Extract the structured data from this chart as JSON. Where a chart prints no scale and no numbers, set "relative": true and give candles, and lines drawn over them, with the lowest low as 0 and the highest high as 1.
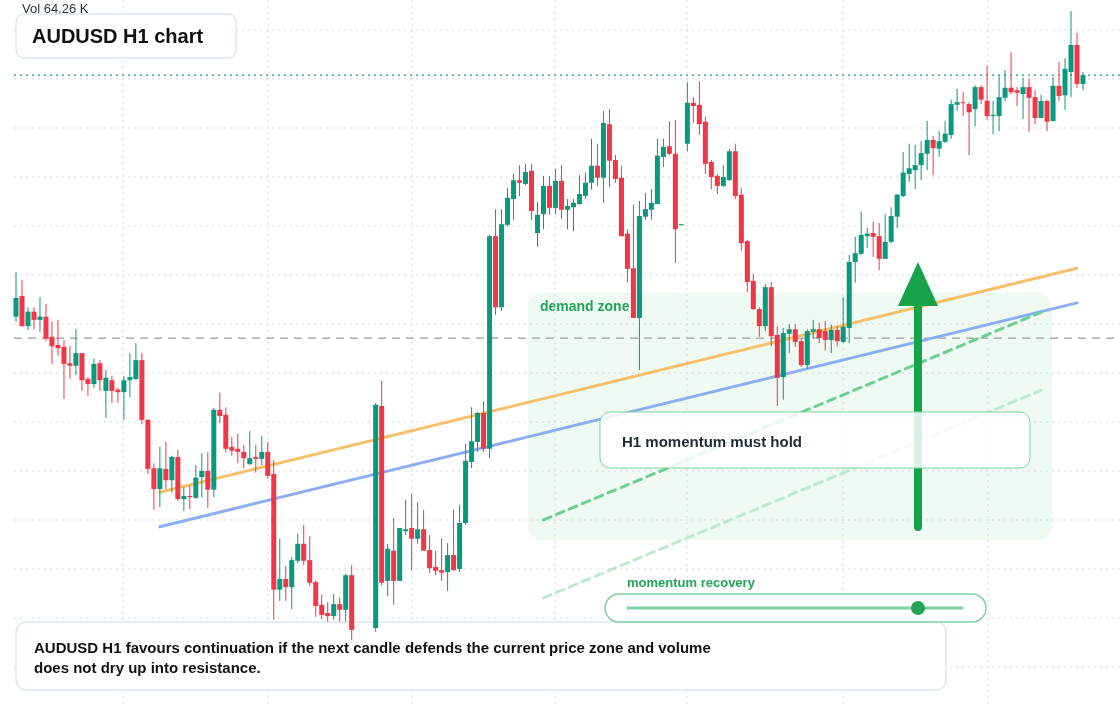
{
  "chart_data": {
    "type": "candlestick",
    "title": "AUDUSD H1 chart",
    "relative": true,
    "grid": true,
    "categories": [
      null,
      null,
      null,
      null,
      null,
      null,
      null,
      null,
      null,
      null,
      null,
      null,
      null,
      null,
      null,
      null,
      null,
      null,
      null,
      null,
      null,
      null,
      null,
      null,
      null,
      null,
      null,
      null,
      null,
      null,
      null,
      null,
      null,
      null,
      null,
      null,
      null,
      null,
      null,
      null,
      null,
      null,
      null,
      null,
      null,
      null,
      null,
      null,
      null,
      null,
      null,
      null,
      null,
      null,
      null,
      null,
      null,
      null,
      null,
      null,
      null,
      null,
      null,
      null,
      null,
      null,
      null,
      null,
      null,
      null,
      null,
      null,
      null,
      null,
      null,
      null,
      null,
      null,
      null,
      null,
      null,
      null,
      null,
      null,
      null,
      null,
      null,
      null,
      null,
      null,
      null,
      null,
      null,
      null,
      null,
      null,
      null,
      null,
      null,
      null,
      null,
      null,
      null,
      null,
      null,
      null,
      null,
      null,
      null,
      null,
      null,
      null,
      null,
      null,
      null,
      null,
      null,
      null,
      null,
      null,
      null,
      null,
      null,
      null,
      null,
      null,
      null,
      null,
      null,
      null,
      null,
      null,
      null,
      null,
      null,
      null,
      null,
      null,
      null,
      null,
      null,
      null,
      null,
      null,
      null,
      null,
      null,
      null,
      null,
      null,
      null,
      null,
      null,
      null,
      null,
      null,
      null,
      null,
      null,
      null,
      null,
      null,
      null,
      null,
      null,
      null,
      null,
      null,
      null,
      null,
      null,
      null,
      null,
      null,
      null,
      null,
      null,
      null,
      null
    ],
    "ohlc": [
      [
        0.514,
        0.585,
        0.506,
        0.544
      ],
      [
        0.547,
        0.572,
        0.498,
        0.499
      ],
      [
        0.499,
        0.529,
        0.493,
        0.522
      ],
      [
        0.522,
        0.529,
        0.494,
        0.509
      ],
      [
        0.509,
        0.545,
        0.49,
        0.514
      ],
      [
        0.514,
        0.534,
        0.475,
        0.479
      ],
      [
        0.482,
        0.506,
        0.439,
        0.467
      ],
      [
        0.469,
        0.509,
        0.452,
        0.464
      ],
      [
        0.466,
        0.477,
        0.383,
        0.439
      ],
      [
        0.44,
        0.467,
        0.415,
        0.436
      ],
      [
        0.436,
        0.494,
        0.421,
        0.456
      ],
      [
        0.456,
        0.456,
        0.396,
        0.413
      ],
      [
        0.415,
        0.418,
        0.388,
        0.407
      ],
      [
        0.407,
        0.447,
        0.401,
        0.439
      ],
      [
        0.44,
        0.445,
        0.396,
        0.413
      ],
      [
        0.396,
        0.429,
        0.353,
        0.417
      ],
      [
        0.413,
        0.42,
        0.377,
        0.396
      ],
      [
        0.398,
        0.401,
        0.377,
        0.394
      ],
      [
        0.394,
        0.42,
        0.35,
        0.413
      ],
      [
        0.413,
        0.456,
        0.386,
        0.418
      ],
      [
        0.415,
        0.472,
        0.413,
        0.445
      ],
      [
        0.445,
        0.456,
        0.343,
        0.35
      ],
      [
        0.35,
        0.351,
        0.264,
        0.272
      ],
      [
        0.273,
        0.281,
        0.207,
        0.24
      ],
      [
        0.24,
        0.307,
        0.211,
        0.273
      ],
      [
        0.272,
        0.315,
        0.24,
        0.254
      ],
      [
        0.254,
        0.293,
        0.234,
        0.291
      ],
      [
        0.291,
        0.302,
        0.221,
        0.224
      ],
      [
        0.224,
        0.243,
        0.205,
        0.229
      ],
      [
        0.229,
        0.246,
        0.208,
        0.227
      ],
      [
        0.226,
        0.278,
        0.224,
        0.258
      ],
      [
        0.259,
        0.297,
        0.227,
        0.269
      ],
      [
        0.269,
        0.299,
        0.21,
        0.239
      ],
      [
        0.239,
        0.369,
        0.227,
        0.366
      ],
      [
        0.366,
        0.393,
        0.345,
        0.356
      ],
      [
        0.358,
        0.37,
        0.299,
        0.304
      ],
      [
        0.307,
        0.323,
        0.293,
        0.301
      ],
      [
        0.304,
        0.328,
        0.281,
        0.299
      ],
      [
        0.299,
        0.31,
        0.273,
        0.289
      ],
      [
        0.28,
        0.332,
        0.278,
        0.289
      ],
      [
        0.291,
        0.31,
        0.266,
        0.288
      ],
      [
        0.288,
        0.324,
        0.278,
        0.299
      ],
      [
        0.299,
        0.315,
        0.256,
        0.261
      ],
      [
        0.264,
        0.286,
        0.032,
        0.08
      ],
      [
        0.08,
        0.161,
        0.062,
        0.097
      ],
      [
        0.097,
        0.118,
        0.062,
        0.084
      ],
      [
        0.084,
        0.132,
        0.049,
        0.127
      ],
      [
        0.126,
        0.169,
        0.122,
        0.153
      ],
      [
        0.153,
        0.183,
        0.119,
        0.126
      ],
      [
        0.127,
        0.165,
        0.086,
        0.091
      ],
      [
        0.092,
        0.095,
        0.037,
        0.054
      ],
      [
        0.056,
        0.072,
        0.033,
        0.04
      ],
      [
        0.043,
        0.06,
        0.029,
        0.038
      ],
      [
        0.038,
        0.073,
        0.032,
        0.057
      ],
      [
        0.057,
        0.067,
        0.029,
        0.048
      ],
      [
        0.048,
        0.105,
        0.029,
        0.103
      ],
      [
        0.103,
        0.119,
        0,
        0.016
      ],
      null,
      null,
      null,
      [
        0.019,
        0.377,
        0.013,
        0.374
      ],
      [
        0.372,
        0.412,
        0.087,
        0.091
      ],
      [
        0.094,
        0.153,
        0.07,
        0.145
      ],
      [
        0.142,
        0.194,
        0.056,
        0.094
      ],
      [
        0.094,
        0.178,
        0.094,
        0.178
      ],
      [
        0.173,
        0.223,
        0.167,
        0.176
      ],
      [
        0.178,
        0.232,
        0.111,
        0.161
      ],
      [
        0.161,
        0.219,
        0.153,
        0.176
      ],
      [
        0.176,
        0.207,
        0.142,
        0.142
      ],
      [
        0.143,
        0.167,
        0.107,
        0.114
      ],
      [
        0.116,
        0.142,
        0.103,
        0.11
      ],
      [
        0.111,
        0.162,
        0.094,
        0.107
      ],
      [
        0.108,
        0.154,
        0.078,
        0.135
      ],
      [
        0.135,
        0.207,
        0.11,
        0.111
      ],
      [
        0.113,
        0.215,
        0.108,
        0.186
      ],
      [
        0.186,
        0.312,
        0.183,
        0.285
      ],
      [
        0.283,
        0.37,
        0.273,
        0.316
      ],
      [
        0.315,
        0.363,
        0.299,
        0.361
      ],
      [
        0.361,
        0.38,
        0.299,
        0.304
      ],
      [
        0.304,
        0.644,
        0.289,
        0.642
      ],
      [
        0.642,
        0.685,
        0.517,
        0.529
      ],
      [
        0.529,
        0.685,
        0.523,
        0.661
      ],
      [
        0.66,
        0.719,
        0.658,
        0.703
      ],
      [
        0.701,
        0.741,
        0.668,
        0.731
      ],
      [
        0.731,
        0.755,
        0.706,
        0.727
      ],
      [
        0.725,
        0.757,
        0.723,
        0.744
      ],
      [
        0.746,
        0.757,
        0.668,
        0.682
      ],
      [
        0.647,
        0.696,
        0.625,
        0.676
      ],
      [
        0.677,
        0.738,
        0.653,
        0.722
      ],
      [
        0.722,
        0.738,
        0.676,
        0.687
      ],
      [
        0.687,
        0.749,
        0.677,
        0.73
      ],
      [
        0.73,
        0.755,
        0.669,
        0.684
      ],
      [
        0.684,
        0.701,
        0.653,
        0.69
      ],
      [
        0.688,
        0.701,
        0.65,
        0.695
      ],
      [
        0.693,
        0.739,
        0.692,
        0.709
      ],
      [
        0.706,
        0.743,
        0.701,
        0.727
      ],
      [
        0.727,
        0.797,
        0.716,
        0.754
      ],
      [
        0.754,
        0.789,
        0.722,
        0.735
      ],
      [
        0.735,
        0.841,
        0.695,
        0.822
      ],
      [
        0.82,
        0.844,
        0.72,
        0.762
      ],
      [
        0.763,
        0.771,
        0.727,
        0.733
      ],
      [
        0.735,
        0.754,
        0.642,
        0.642
      ],
      [
        0.646,
        0.653,
        0.569,
        0.59
      ],
      [
        0.591,
        0.692,
        0.512,
        0.512
      ],
      [
        0.512,
        0.698,
        0.429,
        0.674
      ],
      [
        0.673,
        0.711,
        0.668,
        0.685
      ],
      [
        0.684,
        0.717,
        0.668,
        0.695
      ],
      [
        0.693,
        0.797,
        0.693,
        0.77
      ],
      [
        0.768,
        0.797,
        0.752,
        0.784
      ],
      [
        0.785,
        0.825,
        0.771,
        0.773
      ],
      [
        0.773,
        0.827,
        0.599,
        0.653
      ],
      [
        0.66,
        0.661,
        0.66,
        0.661
      ],
      [
        0.789,
        0.887,
        0.777,
        0.854
      ],
      [
        0.854,
        0.863,
        0.822,
        0.849
      ],
      [
        0.851,
        0.889,
        0.803,
        0.82
      ],
      [
        0.824,
        0.832,
        0.741,
        0.757
      ],
      [
        0.76,
        0.763,
        0.717,
        0.736
      ],
      [
        0.738,
        0.741,
        0.709,
        0.722
      ],
      [
        0.722,
        0.755,
        0.72,
        0.736
      ],
      [
        0.731,
        0.781,
        0.73,
        0.777
      ],
      [
        0.777,
        0.789,
        0.701,
        0.706
      ],
      [
        0.708,
        0.719,
        0.619,
        0.631
      ],
      [
        0.634,
        0.636,
        0.553,
        0.569
      ],
      [
        0.571,
        0.582,
        0.525,
        0.526
      ],
      [
        0.526,
        0.529,
        0.482,
        0.499
      ],
      [
        0.499,
        0.566,
        0.491,
        0.561
      ],
      [
        0.561,
        0.569,
        0.467,
        0.483
      ],
      [
        0.485,
        0.499,
        0.372,
        0.417
      ],
      [
        0.418,
        0.496,
        0.382,
        0.488
      ],
      [
        0.487,
        0.502,
        0.456,
        0.494
      ],
      [
        0.494,
        0.502,
        0.466,
        0.474
      ],
      [
        0.475,
        0.479,
        0.434,
        0.437
      ],
      [
        0.437,
        0.494,
        0.431,
        0.491
      ],
      [
        0.49,
        0.509,
        0.48,
        0.494
      ],
      [
        0.494,
        0.504,
        0.472,
        0.48
      ],
      [
        0.491,
        0.507,
        0.46,
        0.477
      ],
      [
        0.477,
        0.501,
        0.456,
        0.493
      ],
      [
        0.493,
        0.499,
        0.467,
        0.475
      ],
      [
        0.474,
        0.545,
        0.472,
        0.498
      ],
      [
        0.496,
        0.612,
        0.472,
        0.601
      ],
      [
        0.601,
        0.641,
        0.568,
        0.615
      ],
      [
        0.614,
        0.681,
        0.612,
        0.644
      ],
      [
        0.642,
        0.655,
        0.623,
        0.646
      ],
      [
        0.647,
        0.665,
        0.609,
        0.641
      ],
      [
        0.642,
        0.663,
        0.588,
        0.606
      ],
      [
        0.606,
        0.677,
        0.606,
        0.633
      ],
      [
        0.633,
        0.688,
        0.631,
        0.674
      ],
      [
        0.673,
        0.709,
        0.655,
        0.708
      ],
      [
        0.706,
        0.776,
        0.704,
        0.743
      ],
      [
        0.741,
        0.789,
        0.728,
        0.75
      ],
      [
        0.747,
        0.787,
        0.717,
        0.755
      ],
      [
        0.755,
        0.793,
        0.731,
        0.774
      ],
      [
        0.773,
        0.825,
        0.747,
        0.795
      ],
      [
        0.795,
        0.801,
        0.739,
        0.782
      ],
      [
        0.781,
        0.809,
        0.768,
        0.793
      ],
      [
        0.792,
        0.825,
        0.79,
        0.805
      ],
      [
        0.803,
        0.859,
        0.797,
        0.852
      ],
      [
        0.851,
        0.876,
        0.841,
        0.855
      ],
      [
        0.855,
        0.871,
        0.833,
        0.854
      ],
      [
        0.852,
        0.855,
        0.771,
        0.839
      ],
      [
        0.844,
        0.882,
        0.817,
        0.879
      ],
      [
        0.879,
        0.882,
        0.852,
        0.859
      ],
      [
        0.857,
        0.913,
        0.827,
        0.833
      ],
      [
        0.833,
        0.857,
        0.804,
        0.835
      ],
      [
        0.833,
        0.897,
        0.809,
        0.863
      ],
      [
        0.862,
        0.906,
        0.857,
        0.878
      ],
      [
        0.878,
        0.935,
        0.868,
        0.871
      ],
      [
        0.874,
        0.879,
        0.849,
        0.87
      ],
      [
        0.868,
        0.894,
        0.828,
        0.879
      ],
      [
        0.879,
        0.892,
        0.808,
        0.862
      ],
      [
        0.863,
        0.874,
        0.82,
        0.83
      ],
      [
        0.83,
        0.867,
        0.83,
        0.857
      ],
      [
        0.857,
        0.859,
        0.809,
        0.824
      ],
      [
        0.825,
        0.895,
        0.825,
        0.881
      ],
      [
        0.881,
        0.919,
        0.857,
        0.865
      ],
      [
        0.866,
        0.925,
        0.843,
        0.908
      ],
      [
        0.903,
        1,
        0.863,
        0.946
      ],
      [
        0.946,
        0.965,
        0.878,
        0.884
      ],
      [
        0.884,
        0.903,
        0.874,
        0.898
      ]
    ],
    "series": [
      {
        "type": "line",
        "color": "#f6c06a",
        "values": [
          null,
          null,
          null,
          null,
          null,
          null,
          null,
          null,
          null,
          null,
          null,
          null,
          null,
          null,
          null,
          null,
          null,
          null,
          null,
          null,
          null,
          null,
          null,
          null,
          0.235,
          null,
          null,
          null,
          null,
          null,
          null,
          null,
          null,
          null,
          null,
          null,
          null,
          null,
          null,
          null,
          null,
          null,
          null,
          null,
          null,
          null,
          null,
          null,
          null,
          null,
          null,
          null,
          null,
          null,
          null,
          null,
          null,
          null,
          null,
          null,
          null,
          null,
          null,
          null,
          null,
          null,
          null,
          null,
          null,
          null,
          null,
          null,
          null,
          null,
          null,
          null,
          null,
          null,
          null,
          null,
          null,
          null,
          null,
          null,
          null,
          null,
          null,
          null,
          null,
          null,
          null,
          null,
          null,
          null,
          null,
          null,
          null,
          null,
          null,
          null,
          null,
          null,
          null,
          null,
          null,
          null,
          null,
          null,
          null,
          null,
          null,
          null,
          null,
          null,
          null,
          null,
          null,
          null,
          null,
          null,
          null,
          null,
          null,
          null,
          null,
          null,
          null,
          null,
          null,
          null,
          null,
          null,
          null,
          null,
          null,
          null,
          null,
          null,
          null,
          null,
          null,
          null,
          null,
          null,
          null,
          null,
          null,
          null,
          null,
          null,
          null,
          null,
          null,
          null,
          null,
          null,
          null,
          null,
          null,
          null,
          null,
          null,
          null,
          null,
          null,
          null,
          null,
          null,
          null,
          null,
          null,
          null,
          null,
          null,
          null,
          null,
          null,
          0.591,
          null
        ]
      },
      {
        "type": "line",
        "color": "#8aaef0",
        "values": [
          null,
          null,
          null,
          null,
          null,
          null,
          null,
          null,
          null,
          null,
          null,
          null,
          null,
          null,
          null,
          null,
          null,
          null,
          null,
          null,
          null,
          null,
          null,
          null,
          0.18,
          null,
          null,
          null,
          null,
          null,
          null,
          null,
          null,
          null,
          null,
          null,
          null,
          null,
          null,
          null,
          null,
          null,
          null,
          null,
          null,
          null,
          null,
          null,
          null,
          null,
          null,
          null,
          null,
          null,
          null,
          null,
          null,
          null,
          null,
          null,
          null,
          null,
          null,
          null,
          null,
          null,
          null,
          null,
          null,
          null,
          null,
          null,
          null,
          null,
          null,
          null,
          null,
          null,
          null,
          null,
          null,
          null,
          null,
          null,
          null,
          null,
          null,
          null,
          null,
          null,
          null,
          null,
          null,
          null,
          null,
          null,
          null,
          null,
          null,
          null,
          null,
          null,
          null,
          null,
          null,
          null,
          null,
          null,
          null,
          null,
          null,
          null,
          null,
          null,
          null,
          null,
          null,
          null,
          null,
          null,
          null,
          null,
          null,
          null,
          null,
          null,
          null,
          null,
          null,
          null,
          null,
          null,
          null,
          null,
          null,
          null,
          null,
          null,
          null,
          null,
          null,
          null,
          null,
          null,
          null,
          null,
          null,
          null,
          null,
          null,
          null,
          null,
          null,
          null,
          null,
          null,
          null,
          null,
          null,
          null,
          null,
          null,
          null,
          null,
          null,
          null,
          null,
          null,
          null,
          null,
          null,
          null,
          null,
          null,
          null,
          null,
          null,
          0.536,
          null
        ]
      },
      {
        "type": "line",
        "color": "#6ccf93",
        "line_style": "dashed",
        "values": [
          null,
          null,
          null,
          null,
          null,
          null,
          null,
          null,
          null,
          null,
          null,
          null,
          null,
          null,
          null,
          null,
          null,
          null,
          null,
          null,
          null,
          null,
          null,
          null,
          null,
          null,
          null,
          null,
          null,
          null,
          null,
          null,
          null,
          null,
          null,
          null,
          null,
          null,
          null,
          null,
          null,
          null,
          null,
          null,
          null,
          null,
          null,
          null,
          null,
          null,
          null,
          null,
          null,
          null,
          null,
          null,
          null,
          null,
          null,
          null,
          null,
          null,
          null,
          null,
          null,
          null,
          null,
          null,
          null,
          null,
          null,
          null,
          null,
          null,
          null,
          null,
          null,
          null,
          null,
          null,
          null,
          null,
          null,
          null,
          null,
          null,
          null,
          null,
          0.191,
          null,
          null,
          null,
          null,
          null,
          null,
          null,
          null,
          null,
          null,
          null,
          null,
          null,
          null,
          null,
          null,
          null,
          null,
          null,
          null,
          null,
          null,
          null,
          null,
          null,
          null,
          null,
          null,
          null,
          null,
          null,
          null,
          null,
          null,
          null,
          null,
          null,
          null,
          null,
          null,
          null,
          null,
          null,
          null,
          null,
          null,
          null,
          null,
          null,
          null,
          null,
          null,
          null,
          null,
          null,
          null,
          null,
          null,
          null,
          null,
          null,
          null,
          null,
          null,
          null,
          null,
          null,
          null,
          null,
          null,
          null,
          null,
          null,
          null,
          null,
          null,
          null,
          null,
          null,
          null,
          null,
          null,
          0.521,
          null,
          null,
          null,
          null,
          null,
          null,
          null
        ]
      },
      {
        "type": "line",
        "color": "#bfe9cf",
        "line_style": "dashed",
        "values": [
          null,
          null,
          null,
          null,
          null,
          null,
          null,
          null,
          null,
          null,
          null,
          null,
          null,
          null,
          null,
          null,
          null,
          null,
          null,
          null,
          null,
          null,
          null,
          null,
          null,
          null,
          null,
          null,
          null,
          null,
          null,
          null,
          null,
          null,
          null,
          null,
          null,
          null,
          null,
          null,
          null,
          null,
          null,
          null,
          null,
          null,
          null,
          null,
          null,
          null,
          null,
          null,
          null,
          null,
          null,
          null,
          null,
          null,
          null,
          null,
          null,
          null,
          null,
          null,
          null,
          null,
          null,
          null,
          null,
          null,
          null,
          null,
          null,
          null,
          null,
          null,
          null,
          null,
          null,
          null,
          null,
          null,
          null,
          null,
          null,
          null,
          null,
          null,
          0.067,
          null,
          null,
          null,
          null,
          null,
          null,
          null,
          null,
          null,
          null,
          null,
          null,
          null,
          null,
          null,
          null,
          null,
          null,
          null,
          null,
          null,
          null,
          null,
          null,
          null,
          null,
          null,
          null,
          null,
          null,
          null,
          null,
          null,
          null,
          null,
          null,
          null,
          null,
          null,
          null,
          null,
          null,
          null,
          null,
          null,
          null,
          null,
          null,
          null,
          null,
          null,
          null,
          null,
          null,
          null,
          null,
          null,
          null,
          null,
          null,
          null,
          null,
          null,
          null,
          null,
          null,
          null,
          null,
          null,
          null,
          null,
          null,
          null,
          null,
          null,
          null,
          null,
          null,
          null,
          null,
          null,
          null,
          0.397,
          null,
          null,
          null,
          null,
          null,
          null,
          null
        ]
      }
    ],
    "ref_lines": [
      {
        "axis": "y",
        "value": 0.48,
        "color": "#9e9e9e",
        "line_style": "dashed"
      },
      {
        "axis": "y",
        "value": 0.898,
        "color": "#089981",
        "line_style": "dotted"
      }
    ],
    "bands": [
      {
        "axis": "y",
        "from": 0.159,
        "to": 0.552,
        "label": "demand zone",
        "color": "#effaf3"
      }
    ],
    "annotations": [
      "Vol 64.26 K",
      "H1 momentum must hold",
      "momentum recovery",
      "AUDUSD H1 favours continuation if the next candle defends the current price zone and volume does not dry up into resistance."
    ]
  }
}
